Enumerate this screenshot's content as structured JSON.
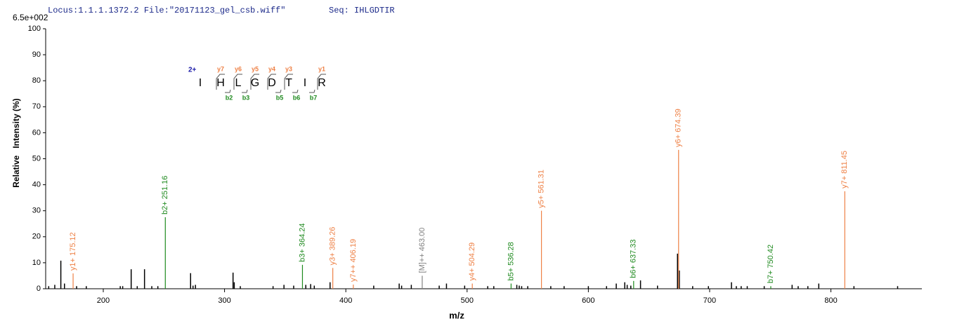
{
  "chart_data": {
    "type": "spectrum",
    "title": "Locus:1.1.1.1372.2 File:\"20171123_gel_csb.wiff\"",
    "subtitle": "Seq: IHLGDTIR",
    "y_max_label": "6.5e+002",
    "x_label": "m/z",
    "y_label": "Relative   Intensity (%)",
    "xlim": [
      152.5,
      875
    ],
    "ylim": [
      0,
      100
    ],
    "xticks": [
      200,
      300,
      400,
      500,
      600,
      700,
      800
    ],
    "yticks": [
      0,
      10,
      20,
      30,
      40,
      50,
      60,
      70,
      80,
      90,
      100
    ],
    "series": [
      {
        "color": "#000000",
        "x": [
          155,
          160,
          165,
          168,
          178,
          186,
          214,
          216,
          223,
          228,
          234,
          240,
          245,
          272,
          274,
          276,
          307,
          308,
          313,
          340,
          349,
          357,
          367,
          371,
          374,
          387,
          423,
          444,
          446,
          454,
          477,
          483,
          498,
          517,
          522,
          541,
          543,
          545,
          550,
          569,
          580,
          600,
          615,
          623,
          630,
          632,
          635,
          643,
          657,
          673.5,
          675,
          686,
          699,
          718,
          722,
          726,
          731,
          745,
          768,
          773,
          781,
          790,
          819,
          855
        ],
        "values": [
          1,
          1.5,
          10.8,
          2,
          1,
          1,
          1,
          1,
          7.5,
          1,
          7.5,
          1,
          1,
          6,
          1.2,
          1.5,
          6.2,
          2.5,
          1,
          1,
          1.5,
          1.2,
          1.5,
          1.8,
          1.2,
          2.5,
          1.2,
          2,
          1.2,
          1.5,
          1.2,
          2,
          1.2,
          1,
          1,
          1.5,
          1.2,
          1,
          1,
          1,
          1,
          1,
          1,
          2,
          2.5,
          1.5,
          1.2,
          3.2,
          1.2,
          13.5,
          7,
          1,
          1,
          2.5,
          1,
          1,
          1,
          1,
          1.5,
          1,
          1,
          2,
          1,
          1
        ]
      },
      {
        "color": "#ee8045",
        "x": [
          175.12,
          389.26,
          406.19,
          504.29,
          561.31,
          674.39,
          811.45
        ],
        "values": [
          5.9,
          8,
          1.6,
          2,
          30,
          53.4,
          37.5
        ],
        "labels": [
          "y1+ 175.12",
          "y3+ 389.26",
          "y7++ 406.19",
          "y4+ 504.29",
          "y5+ 561.31",
          "y6+ 674.39",
          "y7+ 811.45"
        ]
      },
      {
        "color": "#1f8a1f",
        "x": [
          251.16,
          364.24,
          536.28,
          637.33,
          750.42
        ],
        "values": [
          27.5,
          9.2,
          2,
          3,
          1
        ],
        "labels": [
          "b2+ 251.16",
          "b3+ 364.24",
          "b5+ 536.28",
          "b6+ 637.33",
          "b7+ 750.42"
        ]
      },
      {
        "color": "#808080",
        "x": [
          463.0
        ],
        "values": [
          5
        ],
        "labels": [
          "[M]++ 463.00"
        ]
      }
    ],
    "peptide": {
      "charge": "2+",
      "sequence": [
        "I",
        "H",
        "L",
        "G",
        "D",
        "T",
        "I",
        "R"
      ],
      "y_ions": [
        "y7",
        "y6",
        "y5",
        "y4",
        "y3",
        "y1"
      ],
      "b_ions": [
        "b2",
        "b3",
        "b5",
        "b6",
        "b7"
      ]
    }
  }
}
